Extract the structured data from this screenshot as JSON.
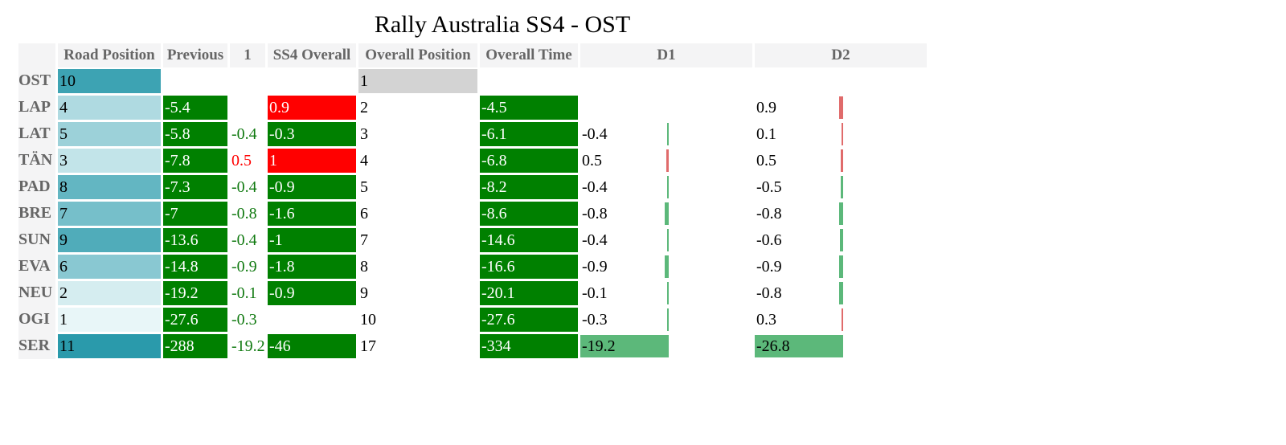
{
  "title": "Rally Australia SS4 - OST",
  "headers": [
    "",
    "Road Position",
    "Previous",
    "1",
    "SS4 Overall",
    "Overall Position",
    "Overall Time",
    "D1",
    "D2"
  ],
  "colors": {
    "road_low": "#e8f6f8",
    "road_high": "#2a9aab",
    "green": "#008000",
    "red": "#ff0000",
    "grey": "#d3d3d3",
    "bar_green": "#5cb87a",
    "bar_red": "#e06b6b"
  },
  "rows": [
    {
      "code": "OST",
      "road": "10",
      "previous": "",
      "stage1": "",
      "ss4": "",
      "pos": "1",
      "time": "",
      "d1": "",
      "d2": ""
    },
    {
      "code": "LAP",
      "road": "4",
      "previous": "-5.4",
      "stage1": "",
      "ss4": "0.9",
      "pos": "2",
      "time": "-4.5",
      "d1": "",
      "d2": "0.9"
    },
    {
      "code": "LAT",
      "road": "5",
      "previous": "-5.8",
      "stage1": "-0.4",
      "ss4": "-0.3",
      "pos": "3",
      "time": "-6.1",
      "d1": "-0.4",
      "d2": "0.1"
    },
    {
      "code": "TÄN",
      "road": "3",
      "previous": "-7.8",
      "stage1": "0.5",
      "ss4": "1",
      "pos": "4",
      "time": "-6.8",
      "d1": "0.5",
      "d2": "0.5"
    },
    {
      "code": "PAD",
      "road": "8",
      "previous": "-7.3",
      "stage1": "-0.4",
      "ss4": "-0.9",
      "pos": "5",
      "time": "-8.2",
      "d1": "-0.4",
      "d2": "-0.5"
    },
    {
      "code": "BRE",
      "road": "7",
      "previous": "-7",
      "stage1": "-0.8",
      "ss4": "-1.6",
      "pos": "6",
      "time": "-8.6",
      "d1": "-0.8",
      "d2": "-0.8"
    },
    {
      "code": "SUN",
      "road": "9",
      "previous": "-13.6",
      "stage1": "-0.4",
      "ss4": "-1",
      "pos": "7",
      "time": "-14.6",
      "d1": "-0.4",
      "d2": "-0.6"
    },
    {
      "code": "EVA",
      "road": "6",
      "previous": "-14.8",
      "stage1": "-0.9",
      "ss4": "-1.8",
      "pos": "8",
      "time": "-16.6",
      "d1": "-0.9",
      "d2": "-0.9"
    },
    {
      "code": "NEU",
      "road": "2",
      "previous": "-19.2",
      "stage1": "-0.1",
      "ss4": "-0.9",
      "pos": "9",
      "time": "-20.1",
      "d1": "-0.1",
      "d2": "-0.8"
    },
    {
      "code": "OGI",
      "road": "1",
      "previous": "-27.6",
      "stage1": "-0.3",
      "ss4": "",
      "pos": "10",
      "time": "-27.6",
      "d1": "-0.3",
      "d2": "0.3"
    },
    {
      "code": "SER",
      "road": "11",
      "previous": "-288",
      "stage1": "-19.2",
      "ss4": "-46",
      "pos": "17",
      "time": "-334",
      "d1": "-19.2",
      "d2": "-26.8"
    }
  ]
}
